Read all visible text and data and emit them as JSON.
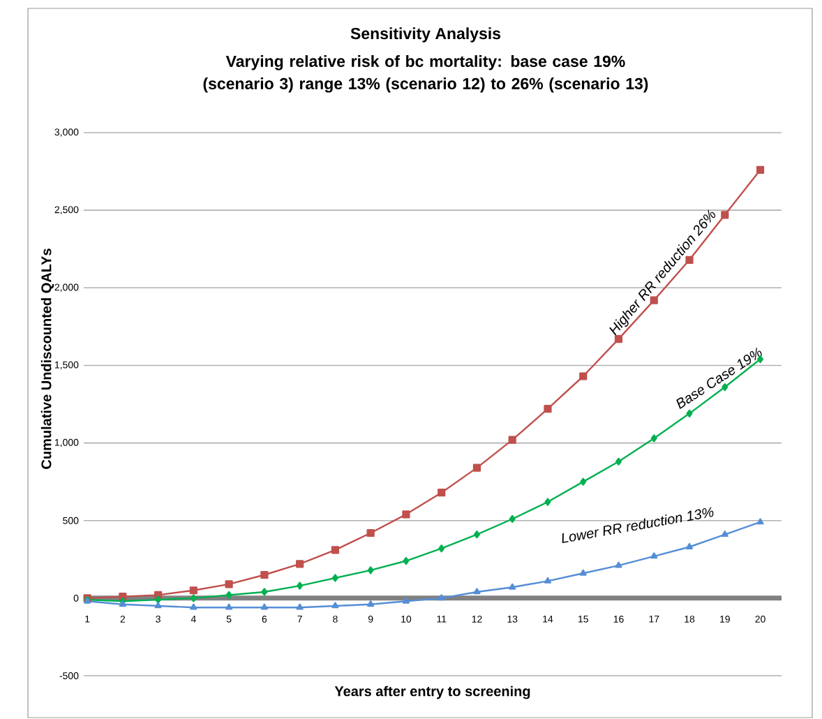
{
  "chart_data": {
    "type": "line",
    "title": "Sensitivity Analysis",
    "subtitle": "Varying relative risk of bc mortality: base case 19% (scenario 3) range 13% (scenario 12) to 26% (scenario 13)",
    "xlabel": "Years after entry to screening",
    "ylabel": "Cumulative Undiscounted QALYs",
    "categories": [
      "1",
      "2",
      "3",
      "4",
      "5",
      "6",
      "7",
      "8",
      "9",
      "10",
      "11",
      "12",
      "13",
      "14",
      "15",
      "16",
      "17",
      "18",
      "19",
      "20"
    ],
    "series": [
      {
        "name": "Higher RR reduction 26%",
        "color": "#c0504d",
        "marker": "square",
        "values": [
          0,
          10,
          20,
          50,
          90,
          150,
          220,
          310,
          420,
          540,
          680,
          840,
          1020,
          1220,
          1430,
          1670,
          1920,
          2180,
          2470,
          2760
        ]
      },
      {
        "name": "Base Case 19%",
        "color": "#00b050",
        "marker": "diamond",
        "values": [
          -10,
          -20,
          -10,
          0,
          20,
          40,
          80,
          130,
          180,
          240,
          320,
          410,
          510,
          620,
          750,
          880,
          1030,
          1190,
          1360,
          1540
        ]
      },
      {
        "name": "Lower RR reduction 13%",
        "color": "#558ed5",
        "marker": "triangle",
        "values": [
          -20,
          -40,
          -50,
          -60,
          -60,
          -60,
          -60,
          -50,
          -40,
          -20,
          0,
          40,
          70,
          110,
          160,
          210,
          270,
          330,
          410,
          490
        ]
      }
    ],
    "ylim": [
      -500,
      3000
    ],
    "yticks": [
      {
        "value": -500,
        "label": "-500"
      },
      {
        "value": 0,
        "label": "0"
      },
      {
        "value": 500,
        "label": "500"
      },
      {
        "value": 1000,
        "label": "1,000"
      },
      {
        "value": 1500,
        "label": "1,500"
      },
      {
        "value": 2000,
        "label": "2,000"
      },
      {
        "value": 2500,
        "label": "2,500"
      },
      {
        "value": 3000,
        "label": "3,000"
      }
    ],
    "grid": "y"
  }
}
